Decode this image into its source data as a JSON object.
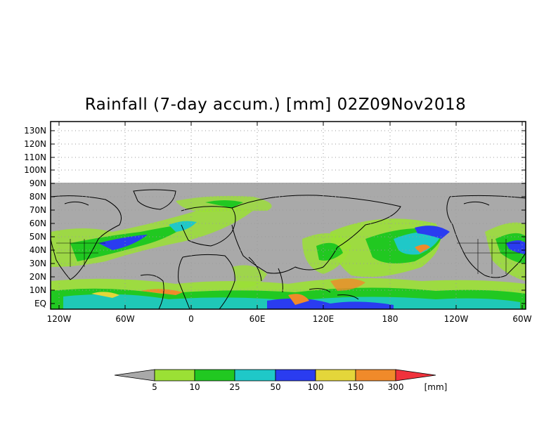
{
  "title": "Rainfall (7-day accum.) [mm] 02Z09Nov2018",
  "map": {
    "lat_ticks": [
      "130N",
      "120N",
      "110N",
      "100N",
      "90N",
      "80N",
      "70N",
      "60N",
      "50N",
      "40N",
      "30N",
      "20N",
      "10N",
      "EQ"
    ],
    "lon_ticks": [
      "120W",
      "60W",
      "0",
      "60E",
      "120E",
      "180",
      "120W",
      "60W"
    ],
    "no_data_color": "#a9a9a9",
    "gridlines": "dotted"
  },
  "colorbar": {
    "unit": "[mm]",
    "thresholds": [
      "5",
      "10",
      "25",
      "50",
      "100",
      "150",
      "300"
    ],
    "colors": [
      "#a9a9a9",
      "#9be035",
      "#21c821",
      "#1fc8c8",
      "#2a3cf0",
      "#e4d63a",
      "#f08a2a",
      "#f0323c"
    ]
  }
}
